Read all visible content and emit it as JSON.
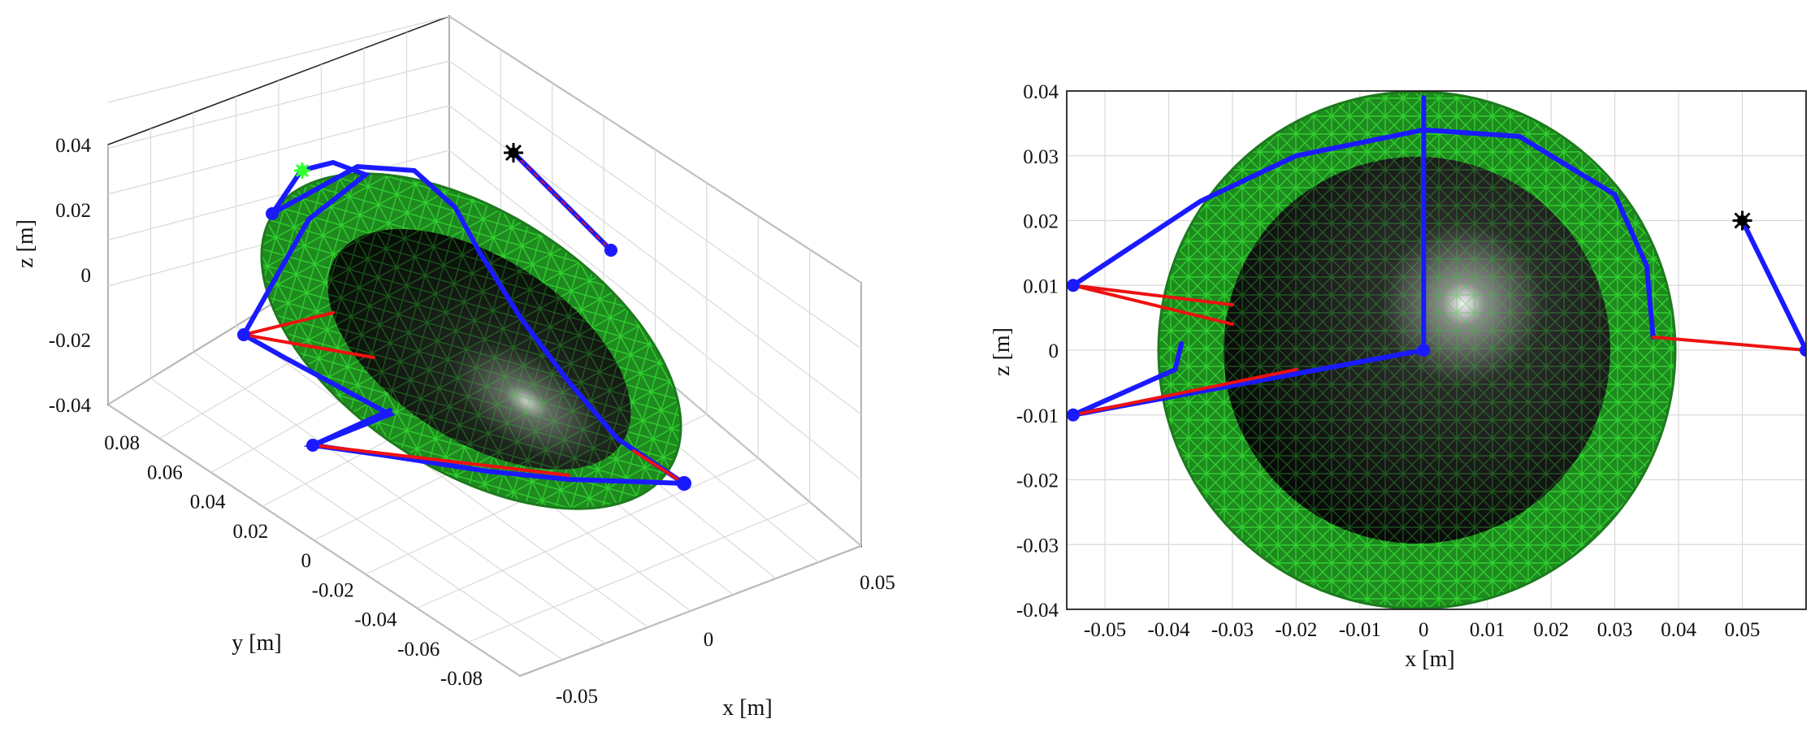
{
  "chart_data": [
    {
      "type": "scatter",
      "view": "3d",
      "title": "",
      "xlabel": "x [m]",
      "ylabel": "y [m]",
      "zlabel": "z [m]",
      "x_ticks": [
        "-0.05",
        "0",
        "0.05"
      ],
      "y_ticks": [
        "0.08",
        "0.06",
        "0.04",
        "0.02",
        "0",
        "-0.02",
        "-0.04",
        "-0.06",
        "-0.08"
      ],
      "z_ticks": [
        "0.04",
        "0.02",
        "0",
        "-0.02",
        "-0.04"
      ],
      "grid": true,
      "colors": {
        "outer_mesh": "#22b922",
        "inner_sphere": "#0a0a0a",
        "links": "#1a1aff",
        "tendons": "#ee1111",
        "target_green": "#33ff33",
        "target_black": "#000000"
      }
    },
    {
      "type": "line",
      "view": "x-z projection",
      "title": "",
      "xlabel": "x [m]",
      "ylabel": "z [m]",
      "xlim": [
        -0.056,
        0.06
      ],
      "ylim": [
        -0.04,
        0.04
      ],
      "x_ticks": [
        "-0.05",
        "-0.04",
        "-0.03",
        "-0.02",
        "-0.01",
        "0",
        "0.01",
        "0.02",
        "0.03",
        "0.04",
        "0.05"
      ],
      "y_ticks": [
        "0.04",
        "0.03",
        "0.02",
        "0.01",
        "0",
        "-0.01",
        "-0.02",
        "-0.03",
        "-0.04"
      ],
      "grid": true,
      "outer_radius": 0.04,
      "inner_radius": 0.03,
      "series": [
        {
          "color": "#1a1aff",
          "points": [
            [
              -0.055,
              0.01
            ],
            [
              -0.035,
              0.023
            ],
            [
              -0.02,
              0.03
            ],
            [
              0,
              0.034
            ],
            [
              0.015,
              0.033
            ],
            [
              0.03,
              0.024
            ],
            [
              0.035,
              0.013
            ],
            [
              0.036,
              0.002
            ]
          ]
        },
        {
          "color": "#1a1aff",
          "points": [
            [
              -0.055,
              -0.01
            ],
            [
              -0.039,
              -0.003
            ],
            [
              -0.038,
              0.001
            ]
          ]
        },
        {
          "color": "#1a1aff",
          "points": [
            [
              -0.055,
              -0.01
            ],
            [
              0,
              0
            ]
          ]
        },
        {
          "color": "#1a1aff",
          "points": [
            [
              0,
              0
            ],
            [
              0,
              0.039
            ]
          ]
        },
        {
          "color": "#1a1aff",
          "points": [
            [
              0.05,
              0.02
            ],
            [
              0.06,
              0
            ]
          ]
        },
        {
          "color": "#ee1111",
          "points": [
            [
              -0.055,
              0.01
            ],
            [
              -0.03,
              0.007
            ]
          ]
        },
        {
          "color": "#ee1111",
          "points": [
            [
              -0.055,
              0.01
            ],
            [
              -0.03,
              0.004
            ]
          ]
        },
        {
          "color": "#ee1111",
          "points": [
            [
              -0.055,
              -0.01
            ],
            [
              -0.02,
              -0.003
            ]
          ]
        },
        {
          "color": "#ee1111",
          "points": [
            [
              0.036,
              0.002
            ],
            [
              0.06,
              0
            ]
          ]
        }
      ],
      "points": [
        {
          "x": -0.055,
          "y": 0.01,
          "color": "#1a1aff"
        },
        {
          "x": -0.055,
          "y": -0.01,
          "color": "#1a1aff"
        },
        {
          "x": 0,
          "y": 0,
          "color": "#1a1aff"
        },
        {
          "x": 0.06,
          "y": 0,
          "color": "#1a1aff"
        },
        {
          "x": 0.05,
          "y": 0.02,
          "color": "#000000"
        }
      ]
    }
  ]
}
